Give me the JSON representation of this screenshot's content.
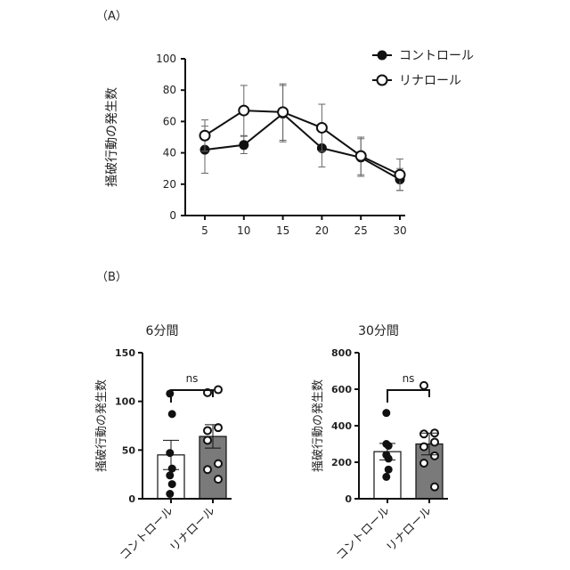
{
  "chart_data": [
    {
      "panel_label": "（A）",
      "type": "line",
      "title": "",
      "xlabel": "",
      "ylabel": "掻破行動の発生数",
      "x": [
        5,
        10,
        15,
        20,
        25,
        30
      ],
      "xticks": [
        "5",
        "10",
        "15",
        "20",
        "25",
        "30"
      ],
      "yticks": [
        "0",
        "20",
        "40",
        "60",
        "80",
        "100"
      ],
      "ylim": [
        0,
        100
      ],
      "legend_position": "top-right",
      "series": [
        {
          "name": "コントロール",
          "marker": "filled-circle",
          "values": [
            42,
            45,
            65,
            43,
            37,
            23
          ],
          "error": [
            15,
            5.5,
            18,
            12,
            12,
            7
          ]
        },
        {
          "name": "リナロール",
          "marker": "open-circle",
          "values": [
            51,
            67,
            66,
            56,
            38,
            26
          ],
          "error": [
            10,
            16,
            18,
            15,
            12,
            10
          ]
        }
      ]
    },
    {
      "panel_label": "（B）",
      "type": "bar",
      "title": "6分間",
      "ylabel": "掻破行動の発生数",
      "categories": [
        "コントロール",
        "リナロール"
      ],
      "values": [
        45,
        64
      ],
      "error": [
        15,
        12
      ],
      "points": [
        [
          108,
          87,
          47,
          31,
          24,
          15,
          5
        ],
        [
          109,
          112,
          70,
          73,
          60,
          36,
          30,
          20
        ]
      ],
      "yticks": [
        "0",
        "50",
        "100",
        "150"
      ],
      "ylim": [
        0,
        150
      ],
      "annotation": "ns"
    },
    {
      "type": "bar",
      "title": "30分間",
      "ylabel": "掻破行動の発生数",
      "categories": [
        "コントロール",
        "リナロール"
      ],
      "values": [
        258,
        300
      ],
      "error": [
        45,
        60
      ],
      "points": [
        [
          470,
          290,
          300,
          220,
          240,
          160,
          120
        ],
        [
          620,
          360,
          355,
          310,
          285,
          235,
          195,
          65
        ]
      ],
      "yticks": [
        "0",
        "200",
        "400",
        "600",
        "800"
      ],
      "ylim": [
        0,
        800
      ],
      "annotation": "ns"
    }
  ],
  "colors": {
    "control_bar": "#ffffff",
    "linalool_bar": "#7a7a7a",
    "ink": "#111111"
  }
}
